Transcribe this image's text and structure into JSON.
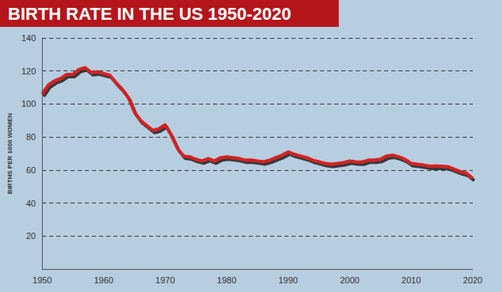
{
  "chart_data": {
    "type": "line",
    "title": "BIRTH RATE IN THE US 1950-2020",
    "y_label": "BIRTHS PER 1000 WOMEN",
    "x": [
      1950,
      1951,
      1952,
      1953,
      1954,
      1955,
      1956,
      1957,
      1958,
      1959,
      1960,
      1961,
      1962,
      1963,
      1964,
      1965,
      1966,
      1967,
      1968,
      1969,
      1970,
      1971,
      1972,
      1973,
      1974,
      1975,
      1976,
      1977,
      1978,
      1979,
      1980,
      1981,
      1982,
      1983,
      1984,
      1985,
      1986,
      1987,
      1988,
      1989,
      1990,
      1991,
      1992,
      1993,
      1994,
      1995,
      1996,
      1997,
      1998,
      1999,
      2000,
      2001,
      2002,
      2003,
      2004,
      2005,
      2006,
      2007,
      2008,
      2009,
      2010,
      2011,
      2012,
      2013,
      2014,
      2015,
      2016,
      2017,
      2018,
      2019,
      2020
    ],
    "values": [
      106,
      111.5,
      114,
      115.5,
      118,
      118,
      121,
      122,
      119,
      119.5,
      118.5,
      117.5,
      113,
      109,
      104,
      95,
      90,
      87,
      84,
      85,
      87.5,
      81,
      73,
      68.5,
      68,
      66.5,
      65.5,
      67,
      65.5,
      67.5,
      68,
      67.5,
      67,
      66,
      66,
      65.5,
      65,
      66,
      67.5,
      69,
      71,
      69.5,
      68.5,
      67.5,
      66,
      65,
      64,
      63.5,
      64,
      64.5,
      65.5,
      65,
      64.8,
      66,
      66,
      66.5,
      68.5,
      69,
      68,
      66.5,
      64,
      63.5,
      63,
      62.3,
      62.5,
      62.3,
      62,
      60.5,
      59,
      58,
      55
    ],
    "color": "#d42020",
    "xlim": [
      1950,
      2020
    ],
    "xticks": [
      1950,
      1960,
      1970,
      1980,
      1990,
      2000,
      2010,
      2020
    ],
    "ylim": [
      0,
      140
    ],
    "yticks": [
      20,
      40,
      60,
      80,
      100,
      120,
      140
    ],
    "grid": true
  }
}
